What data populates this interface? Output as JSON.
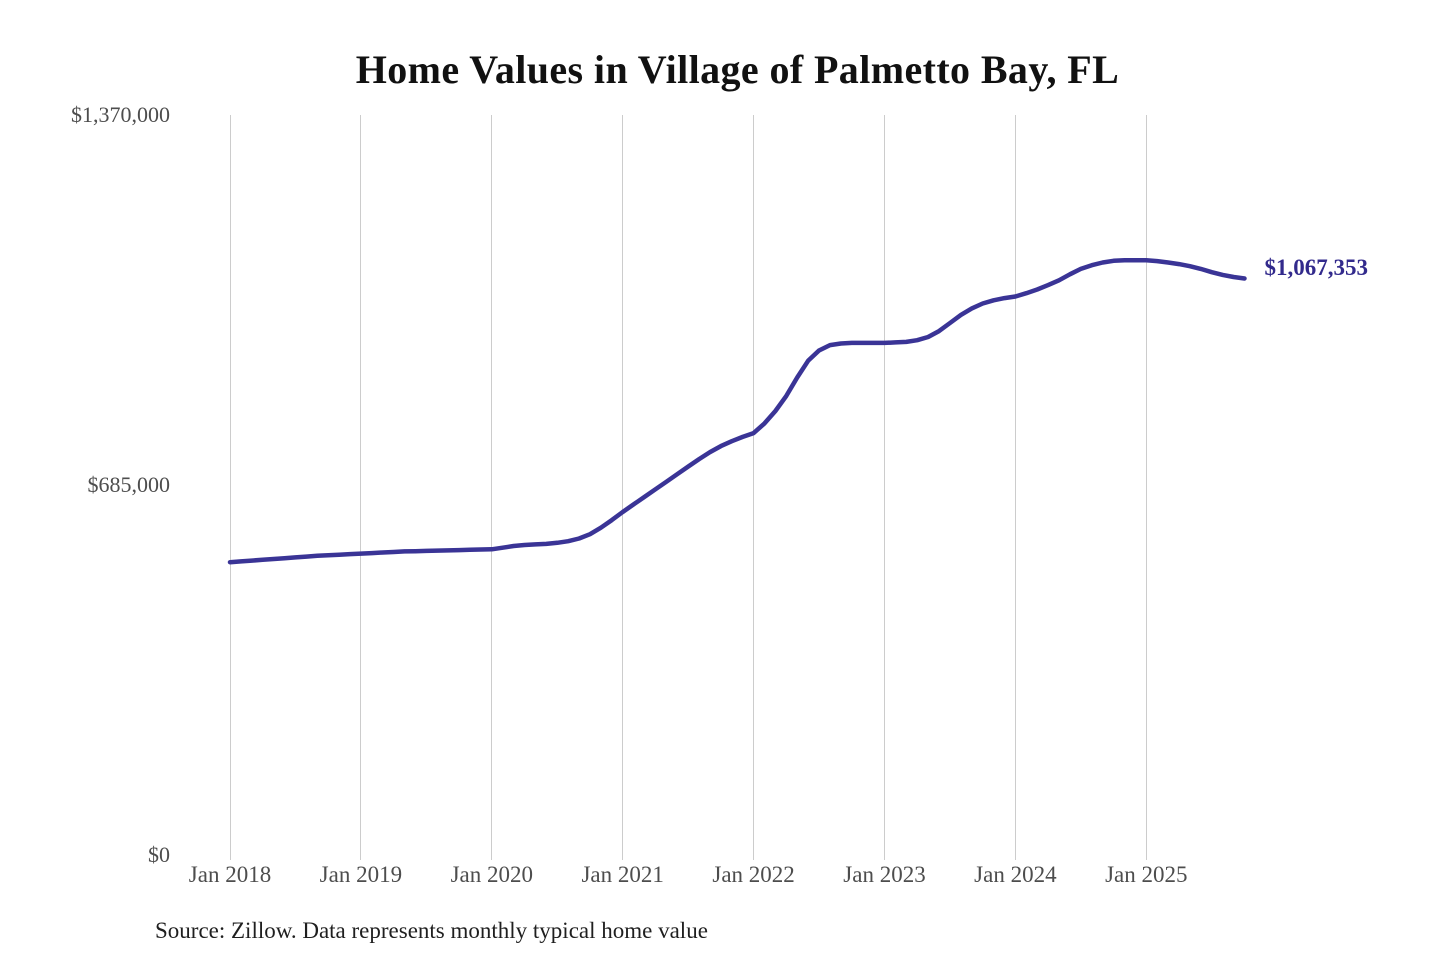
{
  "style": {
    "background": "#ffffff",
    "line_color": "#3a3496",
    "latest_label_color": "#322a8c",
    "grid_color": "#cccccc",
    "tick_color": "#4d4d4d",
    "title_color": "#111111",
    "source_color": "#1f1f1f"
  },
  "chart_data": {
    "type": "line",
    "title": "Home Values in Village of Palmetto Bay, FL",
    "xlabel": "",
    "ylabel": "",
    "x_tick_labels": [
      "Jan 2018",
      "Jan 2019",
      "Jan 2020",
      "Jan 2021",
      "Jan 2022",
      "Jan 2023",
      "Jan 2024",
      "Jan 2025"
    ],
    "y_tick_labels": [
      "$0",
      "$685,000",
      "$1,370,000"
    ],
    "y_tick_values": [
      0,
      685000,
      1370000
    ],
    "ylim": [
      0,
      1370000
    ],
    "grid": "vertical-only",
    "legend": "none",
    "frequency": "monthly",
    "start_month": "Jan 2018",
    "end_month": "Oct 2025",
    "series": [
      {
        "name": "Monthly typical home value",
        "values": [
          542000,
          543500,
          545000,
          546500,
          548000,
          549500,
          551000,
          552500,
          554000,
          555000,
          556000,
          557000,
          558000,
          559000,
          560000,
          561000,
          562000,
          562500,
          563000,
          563500,
          564000,
          564500,
          565000,
          565500,
          566000,
          569000,
          572000,
          574000,
          575000,
          576000,
          578000,
          581000,
          586000,
          594000,
          606000,
          620000,
          635000,
          649000,
          663000,
          677000,
          691000,
          705000,
          719000,
          733000,
          746000,
          757000,
          766000,
          774000,
          781000,
          799000,
          822000,
          850000,
          884000,
          915000,
          934000,
          944000,
          947000,
          948000,
          948000,
          948000,
          948000,
          949000,
          950000,
          953000,
          959000,
          970000,
          985000,
          1000000,
          1012000,
          1021000,
          1027000,
          1031000,
          1034000,
          1040000,
          1047000,
          1055000,
          1064000,
          1075000,
          1085000,
          1092000,
          1097000,
          1100000,
          1101000,
          1101000,
          1101000,
          1099500,
          1097000,
          1094000,
          1090000,
          1085000,
          1079000,
          1074000,
          1070000,
          1067353
        ]
      }
    ],
    "latest_value": 1067353,
    "latest_value_label": "$1,067,353",
    "source": "Source: Zillow. Data represents monthly typical home value"
  }
}
